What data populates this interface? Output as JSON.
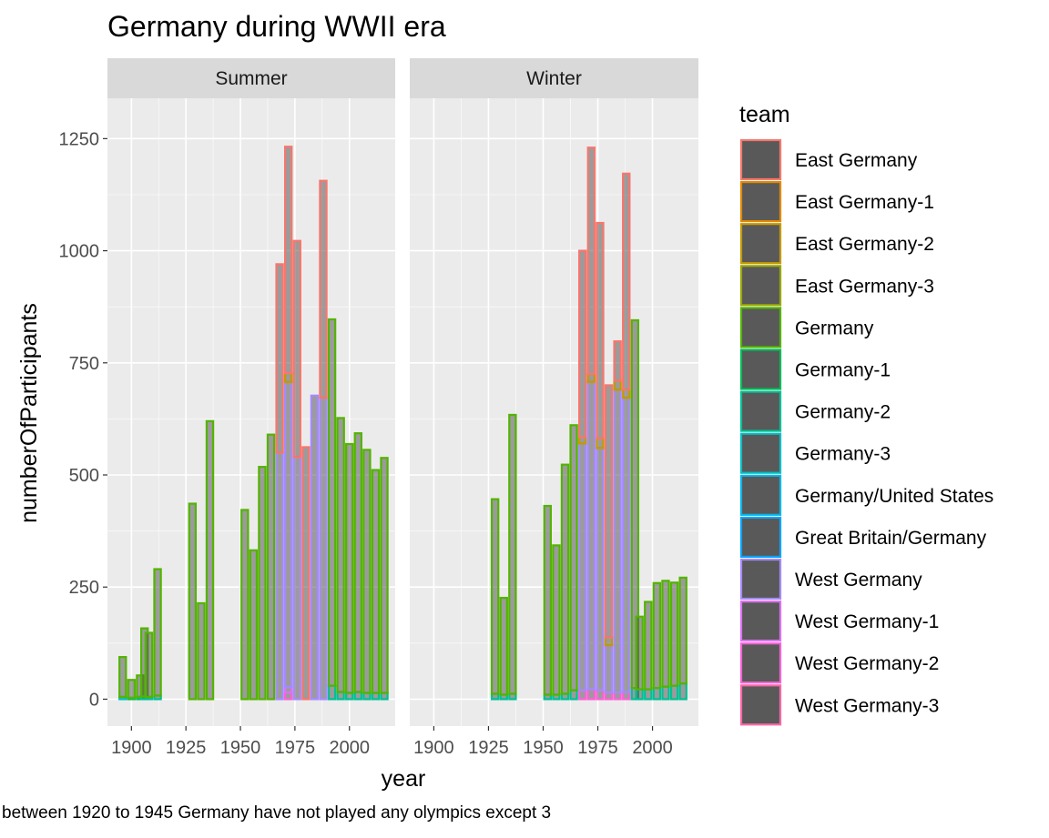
{
  "chart_data": {
    "type": "bar",
    "stacked": true,
    "title": "Germany during WWII era",
    "xlabel": "year",
    "ylabel": "numberOfParticipants",
    "caption": "between 1920 to 1945 Germany have not played any olympics except 3",
    "xlim": [
      1889,
      2021
    ],
    "ylim": [
      -60,
      1340
    ],
    "xticks": [
      1900,
      1925,
      1950,
      1975,
      2000
    ],
    "yticks": [
      0,
      250,
      500,
      750,
      1000,
      1250
    ],
    "legend_title": "team",
    "legend_position": "right",
    "teams": [
      {
        "name": "East Germany",
        "color": "#F8766D"
      },
      {
        "name": "East Germany-1",
        "color": "#E38900"
      },
      {
        "name": "East Germany-2",
        "color": "#C49A00"
      },
      {
        "name": "East Germany-3",
        "color": "#99A800"
      },
      {
        "name": "Germany",
        "color": "#53B400"
      },
      {
        "name": "Germany-1",
        "color": "#00BC56"
      },
      {
        "name": "Germany-2",
        "color": "#00C094"
      },
      {
        "name": "Germany-3",
        "color": "#00BFC4"
      },
      {
        "name": "Germany/United States",
        "color": "#00B6EB"
      },
      {
        "name": "Great Britain/Germany",
        "color": "#06A4FF"
      },
      {
        "name": "West Germany",
        "color": "#A58AFF"
      },
      {
        "name": "West Germany-1",
        "color": "#DF70F8"
      },
      {
        "name": "West Germany-2",
        "color": "#FB61D7"
      },
      {
        "name": "West Germany-3",
        "color": "#FF66A8"
      }
    ],
    "panels": [
      {
        "label": "Summer",
        "bars": [
          {
            "year": 1896,
            "stack": [
              [
                "Germany-3",
                5
              ],
              [
                "Germany",
                89
              ]
            ]
          },
          {
            "year": 1900,
            "stack": [
              [
                "Germany-1",
                3
              ],
              [
                "Germany",
                40
              ]
            ]
          },
          {
            "year": 1904,
            "stack": [
              [
                "Germany-1",
                5
              ],
              [
                "Germany",
                48
              ]
            ]
          },
          {
            "year": 1906,
            "stack": [
              [
                "Germany-2",
                6
              ],
              [
                "Germany",
                152
              ]
            ]
          },
          {
            "year": 1908,
            "stack": [
              [
                "Germany-2",
                5
              ],
              [
                "Germany",
                143
              ]
            ]
          },
          {
            "year": 1912,
            "stack": [
              [
                "Germany-2",
                8
              ],
              [
                "Germany",
                282
              ]
            ]
          },
          {
            "year": 1928,
            "stack": [
              [
                "Germany",
                436
              ]
            ]
          },
          {
            "year": 1932,
            "stack": [
              [
                "Germany",
                214
              ]
            ]
          },
          {
            "year": 1936,
            "stack": [
              [
                "Germany",
                620
              ]
            ]
          },
          {
            "year": 1952,
            "stack": [
              [
                "Germany",
                422
              ]
            ]
          },
          {
            "year": 1956,
            "stack": [
              [
                "Germany",
                332
              ]
            ]
          },
          {
            "year": 1960,
            "stack": [
              [
                "Germany",
                518
              ]
            ]
          },
          {
            "year": 1964,
            "stack": [
              [
                "Germany",
                590
              ]
            ]
          },
          {
            "year": 1968,
            "stack": [
              [
                "West Germany",
                550
              ],
              [
                "East Germany",
                420
              ]
            ]
          },
          {
            "year": 1972,
            "stack": [
              [
                "West Germany-2",
                15
              ],
              [
                "West Germany-1",
                12
              ],
              [
                "West Germany",
                680
              ],
              [
                "East Germany-2",
                20
              ],
              [
                "East Germany",
                505
              ]
            ]
          },
          {
            "year": 1976,
            "stack": [
              [
                "West Germany",
                540
              ],
              [
                "East Germany",
                482
              ]
            ]
          },
          {
            "year": 1980,
            "stack": [
              [
                "East Germany",
                562
              ]
            ]
          },
          {
            "year": 1984,
            "stack": [
              [
                "West Germany",
                677
              ]
            ]
          },
          {
            "year": 1988,
            "stack": [
              [
                "West Germany",
                672
              ],
              [
                "East Germany",
                484
              ]
            ]
          },
          {
            "year": 1992,
            "stack": [
              [
                "Germany-2",
                30
              ],
              [
                "Germany",
                817
              ]
            ]
          },
          {
            "year": 1996,
            "stack": [
              [
                "Germany-2",
                16
              ],
              [
                "Germany",
                611
              ]
            ]
          },
          {
            "year": 2000,
            "stack": [
              [
                "Germany-2",
                14
              ],
              [
                "Germany",
                555
              ]
            ]
          },
          {
            "year": 2004,
            "stack": [
              [
                "Germany-2",
                16
              ],
              [
                "Germany",
                577
              ]
            ]
          },
          {
            "year": 2008,
            "stack": [
              [
                "Germany-2",
                14
              ],
              [
                "Germany",
                542
              ]
            ]
          },
          {
            "year": 2012,
            "stack": [
              [
                "Germany-2",
                14
              ],
              [
                "Germany",
                497
              ]
            ]
          },
          {
            "year": 2016,
            "stack": [
              [
                "Germany-2",
                14
              ],
              [
                "Germany",
                524
              ]
            ]
          }
        ]
      },
      {
        "label": "Winter",
        "bars": [
          {
            "year": 1928,
            "stack": [
              [
                "Germany-2",
                12
              ],
              [
                "Germany",
                434
              ]
            ]
          },
          {
            "year": 1932,
            "stack": [
              [
                "Germany-2",
                10
              ],
              [
                "Germany",
                216
              ]
            ]
          },
          {
            "year": 1936,
            "stack": [
              [
                "Germany-2",
                12
              ],
              [
                "Germany",
                622
              ]
            ]
          },
          {
            "year": 1952,
            "stack": [
              [
                "Germany-2",
                10
              ],
              [
                "Germany",
                421
              ]
            ]
          },
          {
            "year": 1956,
            "stack": [
              [
                "Germany-2",
                10
              ],
              [
                "Germany",
                333
              ]
            ]
          },
          {
            "year": 1960,
            "stack": [
              [
                "Germany-2",
                12
              ],
              [
                "Germany",
                511
              ]
            ]
          },
          {
            "year": 1964,
            "stack": [
              [
                "Germany-2",
                20
              ],
              [
                "Germany",
                591
              ]
            ]
          },
          {
            "year": 1968,
            "stack": [
              [
                "West Germany-2",
                20
              ],
              [
                "West Germany",
                550
              ],
              [
                "East Germany-2",
                14
              ],
              [
                "East Germany",
                416
              ]
            ]
          },
          {
            "year": 1972,
            "stack": [
              [
                "West Germany-2",
                22
              ],
              [
                "West Germany",
                685
              ],
              [
                "East Germany-2",
                18
              ],
              [
                "East Germany",
                505
              ]
            ]
          },
          {
            "year": 1976,
            "stack": [
              [
                "West Germany-2",
                20
              ],
              [
                "West Germany",
                540
              ],
              [
                "East Germany-2",
                22
              ],
              [
                "East Germany",
                480
              ]
            ]
          },
          {
            "year": 1980,
            "stack": [
              [
                "West Germany-2",
                15
              ],
              [
                "West Germany",
                105
              ],
              [
                "East Germany-2",
                18
              ],
              [
                "East Germany",
                562
              ]
            ]
          },
          {
            "year": 1984,
            "stack": [
              [
                "West Germany-2",
                15
              ],
              [
                "West Germany",
                675
              ],
              [
                "East Germany-2",
                20
              ],
              [
                "East Germany",
                88
              ]
            ]
          },
          {
            "year": 1988,
            "stack": [
              [
                "West Germany-2",
                16
              ],
              [
                "West Germany",
                656
              ],
              [
                "East Germany-2",
                18
              ],
              [
                "East Germany",
                482
              ]
            ]
          },
          {
            "year": 1992,
            "stack": [
              [
                "Germany-2",
                25
              ],
              [
                "Germany",
                820
              ]
            ]
          },
          {
            "year": 1994,
            "stack": [
              [
                "Germany-2",
                22
              ],
              [
                "Germany",
                162
              ]
            ]
          },
          {
            "year": 1998,
            "stack": [
              [
                "Germany-2",
                22
              ],
              [
                "Germany",
                195
              ]
            ]
          },
          {
            "year": 2002,
            "stack": [
              [
                "Germany-2",
                25
              ],
              [
                "Germany",
                234
              ]
            ]
          },
          {
            "year": 2006,
            "stack": [
              [
                "Germany-2",
                28
              ],
              [
                "Germany",
                236
              ]
            ]
          },
          {
            "year": 2010,
            "stack": [
              [
                "Germany-2",
                30
              ],
              [
                "Germany",
                230
              ]
            ]
          },
          {
            "year": 2014,
            "stack": [
              [
                "Germany-2",
                35
              ],
              [
                "Germany",
                236
              ]
            ]
          }
        ]
      }
    ]
  }
}
